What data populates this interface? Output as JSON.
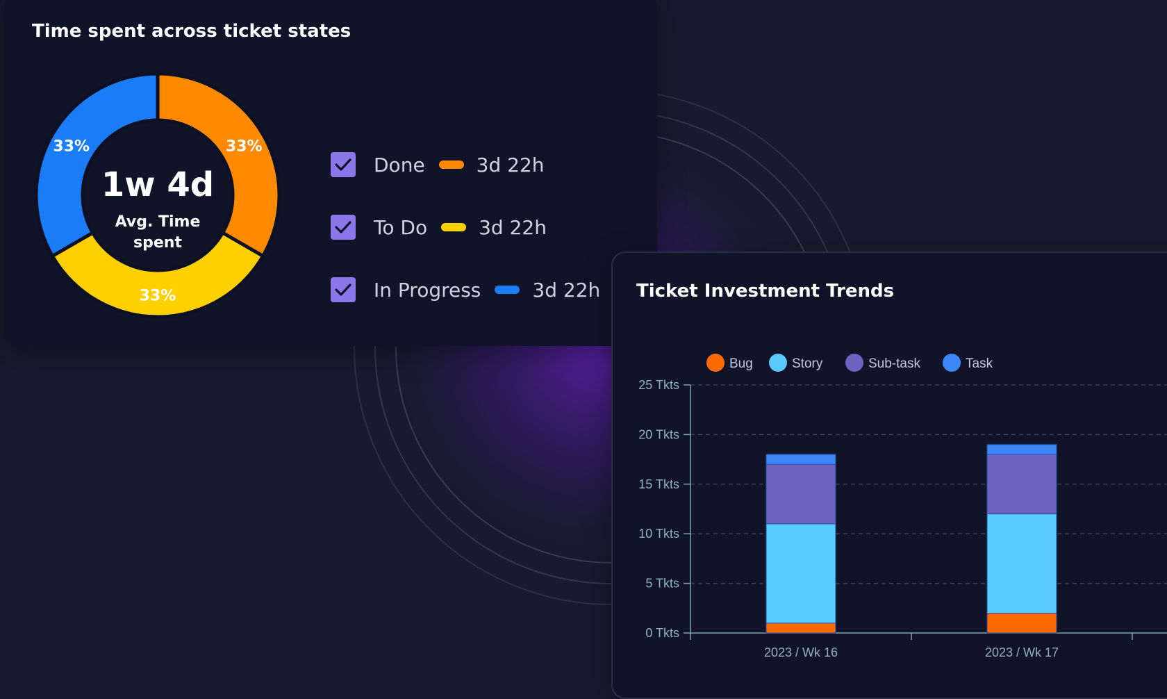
{
  "time_card": {
    "title": "Time spent across ticket states",
    "center_value": "1w 4d",
    "center_label_line1": "Avg. Time",
    "center_label_line2": "spent",
    "states": [
      {
        "label": "Done",
        "value": "3d 22h",
        "percent_label": "33%",
        "color": "#ff8a00",
        "checked": true
      },
      {
        "label": "To Do",
        "value": "3d 22h",
        "percent_label": "33%",
        "color": "#ffd000",
        "checked": true
      },
      {
        "label": "In Progress",
        "value": "3d 22h",
        "percent_label": "33%",
        "color": "#1a7cf7",
        "checked": true
      }
    ]
  },
  "trends_card": {
    "title": "Ticket Investment Trends"
  },
  "chart_data": [
    {
      "type": "pie",
      "title": "Time spent across ticket states",
      "categories": [
        "Done",
        "To Do",
        "In Progress"
      ],
      "values": [
        33,
        33,
        33
      ],
      "data_labels": [
        "33%",
        "33%",
        "33%"
      ],
      "colors": [
        "#ff8a00",
        "#ffd000",
        "#1a7cf7"
      ]
    },
    {
      "type": "bar",
      "stacked": true,
      "title": "Ticket Investment Trends",
      "categories": [
        "2023 / Wk 16",
        "2023 / Wk 17"
      ],
      "series": [
        {
          "name": "Bug",
          "values": [
            1,
            2
          ],
          "color": "#ff6a00"
        },
        {
          "name": "Story",
          "values": [
            10,
            10
          ],
          "color": "#5acbff"
        },
        {
          "name": "Sub-task",
          "values": [
            6,
            6
          ],
          "color": "#6f62c1"
        },
        {
          "name": "Task",
          "values": [
            1,
            1
          ],
          "color": "#3d86f7"
        }
      ],
      "ylim": [
        0,
        25
      ],
      "yticks": [
        0,
        5,
        10,
        15,
        20,
        25
      ],
      "ytick_labels": [
        "0 Tkts",
        "5 Tkts",
        "10 Tkts",
        "15 Tkts",
        "20 Tkts",
        "25 Tkts"
      ],
      "grid": true,
      "legend": "top-left"
    }
  ]
}
